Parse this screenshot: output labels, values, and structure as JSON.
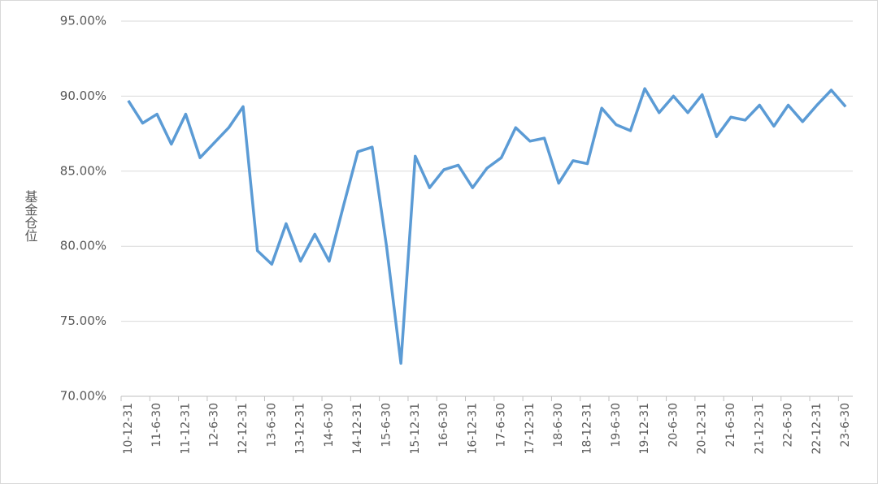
{
  "chart_data": {
    "type": "line",
    "y_label": "基金仓位",
    "categories": [
      "10-12-31",
      null,
      "11-6-30",
      null,
      "11-12-31",
      null,
      "12-6-30",
      null,
      "12-12-31",
      null,
      "13-6-30",
      null,
      "13-12-31",
      null,
      "14-6-30",
      null,
      "14-12-31",
      null,
      "15-6-30",
      null,
      "15-12-31",
      null,
      "16-6-30",
      null,
      "16-12-31",
      null,
      "17-6-30",
      null,
      "17-12-31",
      null,
      "18-6-30",
      null,
      "18-12-31",
      null,
      "19-6-30",
      null,
      "19-12-31",
      null,
      "20-6-30",
      null,
      "20-12-31",
      null,
      "21-6-30",
      null,
      "21-12-31",
      null,
      "22-6-30",
      null,
      "22-12-31",
      null,
      "23-6-30"
    ],
    "series": [
      {
        "color": "#5b9bd5",
        "values": [
          89.7,
          88.2,
          88.8,
          86.8,
          88.8,
          85.9,
          86.9,
          87.9,
          89.3,
          79.7,
          78.8,
          81.5,
          79.0,
          80.8,
          79.0,
          82.7,
          86.3,
          86.6,
          80.0,
          72.2,
          86.0,
          83.9,
          85.1,
          85.4,
          83.9,
          85.2,
          85.9,
          87.9,
          87.0,
          87.2,
          84.2,
          85.7,
          85.5,
          89.2,
          88.1,
          87.7,
          90.5,
          88.9,
          90.0,
          88.9,
          90.1,
          87.3,
          88.6,
          88.4,
          89.4,
          88.0,
          89.4,
          88.3,
          89.4,
          90.4,
          89.3
        ]
      }
    ],
    "ylim": [
      70,
      95
    ],
    "yticks": [
      {
        "value": 70,
        "label": "70.00%"
      },
      {
        "value": 75,
        "label": "75.00%"
      },
      {
        "value": 80,
        "label": "80.00%"
      },
      {
        "value": 85,
        "label": "85.00%"
      },
      {
        "value": 90,
        "label": "90.00%"
      },
      {
        "value": 95,
        "label": "95.00%"
      }
    ],
    "grid": true
  }
}
